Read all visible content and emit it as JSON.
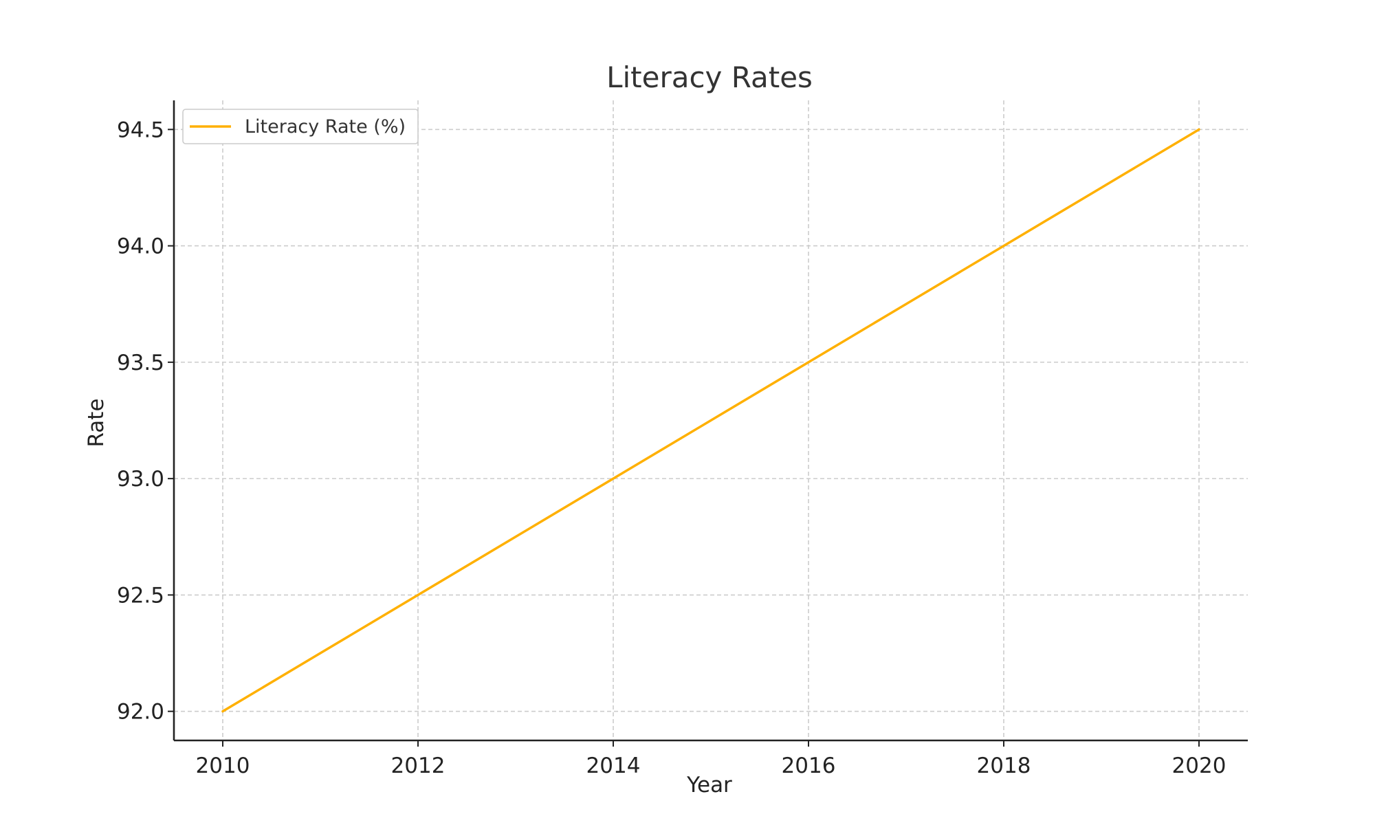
{
  "chart_data": {
    "type": "line",
    "title": "Literacy Rates",
    "xlabel": "Year",
    "ylabel": "Rate",
    "x": [
      2010,
      2011,
      2012,
      2013,
      2014,
      2015,
      2016,
      2017,
      2018,
      2019,
      2020
    ],
    "series": [
      {
        "name": "Literacy Rate (%)",
        "values": [
          92.0,
          92.25,
          92.5,
          92.75,
          93.0,
          93.25,
          93.5,
          93.75,
          94.0,
          94.25,
          94.5
        ],
        "color": "#FFB000"
      }
    ],
    "xlim": [
      2009.5,
      2020.5
    ],
    "ylim": [
      91.875,
      94.625
    ],
    "xticks": [
      "2010",
      "2012",
      "2014",
      "2016",
      "2018",
      "2020"
    ],
    "yticks": [
      "92.0",
      "92.5",
      "93.0",
      "93.5",
      "94.0",
      "94.5"
    ],
    "grid": true,
    "legend_position": "top-left"
  }
}
